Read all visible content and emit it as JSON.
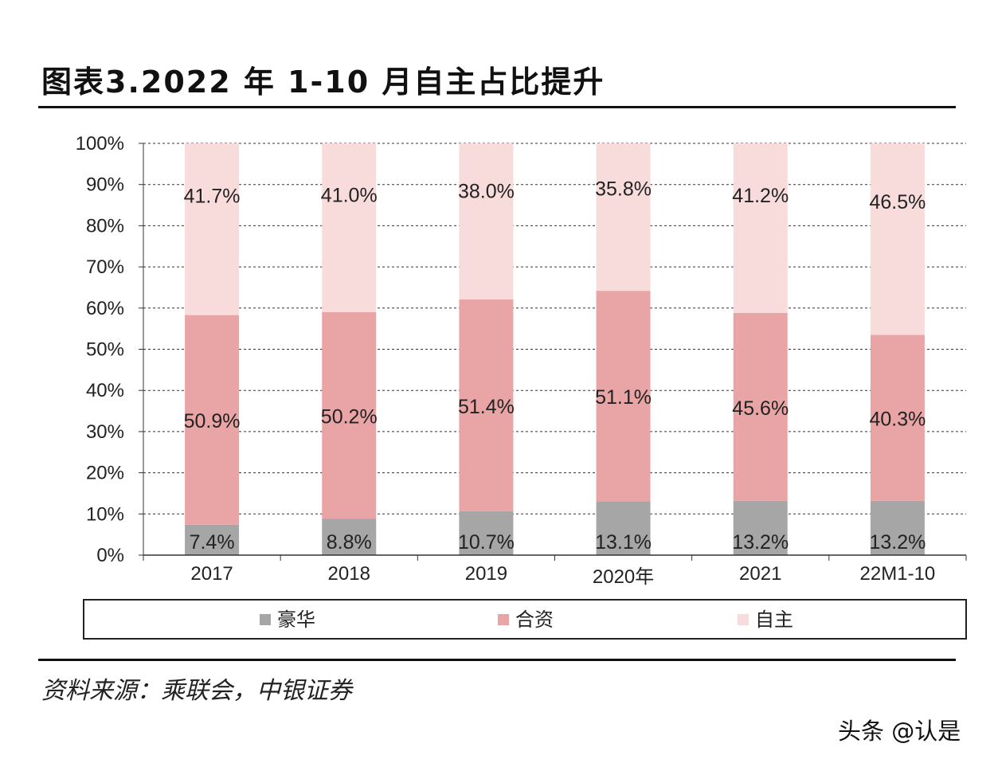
{
  "title": "图表3.2022 年 1-10 月自主占比提升",
  "source": "资料来源：乘联会，中银证券",
  "watermark": "头条 @认是",
  "chart_data": {
    "type": "bar",
    "stacked": true,
    "title": "",
    "categories": [
      "2017",
      "2018",
      "2019",
      "2020年",
      "2021",
      "22M1-10"
    ],
    "series": [
      {
        "name": "豪华",
        "color": "#a6a6a6",
        "values": [
          7.4,
          8.8,
          10.7,
          13.1,
          13.2,
          13.2
        ],
        "labels": [
          "7.4%",
          "8.8%",
          "10.7%",
          "13.1%",
          "13.2%",
          "13.2%"
        ]
      },
      {
        "name": "合资",
        "color": "#e9a5a5",
        "values": [
          50.9,
          50.2,
          51.4,
          51.1,
          45.6,
          40.3
        ],
        "labels": [
          "50.9%",
          "50.2%",
          "51.4%",
          "51.1%",
          "45.6%",
          "40.3%"
        ]
      },
      {
        "name": "自主",
        "color": "#f8dcdc",
        "values": [
          41.7,
          41.0,
          38.0,
          35.8,
          41.2,
          46.5
        ],
        "labels": [
          "41.7%",
          "41.0%",
          "38.0%",
          "35.8%",
          "41.2%",
          "46.5%"
        ]
      }
    ],
    "ylim": [
      0,
      100
    ],
    "yticks": [
      "0%",
      "10%",
      "20%",
      "30%",
      "40%",
      "50%",
      "60%",
      "70%",
      "80%",
      "90%",
      "100%"
    ],
    "grid": true,
    "legend_position": "bottom"
  }
}
